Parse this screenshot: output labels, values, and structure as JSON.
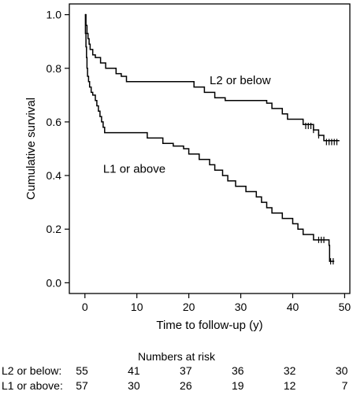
{
  "chart_data": {
    "type": "line",
    "subtype": "kaplan-meier step",
    "xlabel": "Time to follow-up (y)",
    "ylabel": "Cumulative survival",
    "xlim": [
      -3,
      51
    ],
    "ylim": [
      -0.04,
      1.04
    ],
    "xticks": [
      0,
      10,
      20,
      30,
      40,
      50
    ],
    "yticks": [
      "0.0",
      "0.2",
      "0.4",
      "0.6",
      "0.8",
      "1.0"
    ],
    "grid": false,
    "series": [
      {
        "name": "L2 or below",
        "label_at": [
          24,
          0.74
        ],
        "points": [
          [
            0,
            1.0
          ],
          [
            0.2,
            0.96
          ],
          [
            0.4,
            0.93
          ],
          [
            0.6,
            0.91
          ],
          [
            0.8,
            0.89
          ],
          [
            1.0,
            0.87
          ],
          [
            1.5,
            0.85
          ],
          [
            2.0,
            0.84
          ],
          [
            3.0,
            0.82
          ],
          [
            4.0,
            0.8
          ],
          [
            6.0,
            0.78
          ],
          [
            7.0,
            0.77
          ],
          [
            8.0,
            0.75
          ],
          [
            12.0,
            0.75
          ],
          [
            13.0,
            0.75
          ],
          [
            19.0,
            0.75
          ],
          [
            21.0,
            0.73
          ],
          [
            23.0,
            0.71
          ],
          [
            25.0,
            0.69
          ],
          [
            27.0,
            0.68
          ],
          [
            35.0,
            0.67
          ],
          [
            36.0,
            0.65
          ],
          [
            38.0,
            0.63
          ],
          [
            39.0,
            0.61
          ],
          [
            42.0,
            0.59
          ],
          [
            44.0,
            0.57
          ],
          [
            45.0,
            0.55
          ],
          [
            46.0,
            0.53
          ],
          [
            49.0,
            0.53
          ]
        ],
        "censored": [
          [
            42.5,
            0.585
          ],
          [
            43.0,
            0.585
          ],
          [
            43.5,
            0.585
          ],
          [
            44.0,
            0.57
          ],
          [
            45.0,
            0.55
          ],
          [
            46.5,
            0.525
          ],
          [
            47.0,
            0.525
          ],
          [
            47.5,
            0.525
          ],
          [
            48.0,
            0.525
          ],
          [
            48.5,
            0.525
          ]
        ]
      },
      {
        "name": "L1 or above",
        "label_at": [
          3.5,
          0.41
        ],
        "points": [
          [
            0,
            1.0
          ],
          [
            0.1,
            0.93
          ],
          [
            0.2,
            0.88
          ],
          [
            0.3,
            0.84
          ],
          [
            0.4,
            0.8
          ],
          [
            0.5,
            0.77
          ],
          [
            0.7,
            0.75
          ],
          [
            0.9,
            0.73
          ],
          [
            1.2,
            0.71
          ],
          [
            1.5,
            0.7
          ],
          [
            2.0,
            0.68
          ],
          [
            2.3,
            0.66
          ],
          [
            2.6,
            0.64
          ],
          [
            2.9,
            0.62
          ],
          [
            3.2,
            0.6
          ],
          [
            3.5,
            0.58
          ],
          [
            3.8,
            0.56
          ],
          [
            12.0,
            0.54
          ],
          [
            15.0,
            0.52
          ],
          [
            17.0,
            0.51
          ],
          [
            19.0,
            0.5
          ],
          [
            20.0,
            0.48
          ],
          [
            22.0,
            0.46
          ],
          [
            24.0,
            0.44
          ],
          [
            25.0,
            0.42
          ],
          [
            26.5,
            0.4
          ],
          [
            27.5,
            0.38
          ],
          [
            29.0,
            0.36
          ],
          [
            31.0,
            0.34
          ],
          [
            33.0,
            0.32
          ],
          [
            34.0,
            0.3
          ],
          [
            35.0,
            0.28
          ],
          [
            36.0,
            0.26
          ],
          [
            38.0,
            0.24
          ],
          [
            40.0,
            0.22
          ],
          [
            41.0,
            0.2
          ],
          [
            42.0,
            0.18
          ],
          [
            44.0,
            0.16
          ],
          [
            46.5,
            0.16
          ],
          [
            47.0,
            0.14
          ],
          [
            47.1,
            0.08
          ],
          [
            48.0,
            0.08
          ]
        ],
        "censored": [
          [
            45.0,
            0.16
          ],
          [
            45.5,
            0.16
          ],
          [
            46.0,
            0.16
          ],
          [
            47.3,
            0.08
          ],
          [
            47.8,
            0.08
          ]
        ]
      }
    ]
  },
  "risk_table": {
    "title": "Numbers at risk",
    "rows": [
      {
        "label": "L2 or below:",
        "values": [
          "55",
          "41",
          "37",
          "36",
          "32",
          "30"
        ]
      },
      {
        "label": "L1 or above:",
        "values": [
          "57",
          "30",
          "26",
          "19",
          "12",
          "7"
        ]
      }
    ]
  }
}
